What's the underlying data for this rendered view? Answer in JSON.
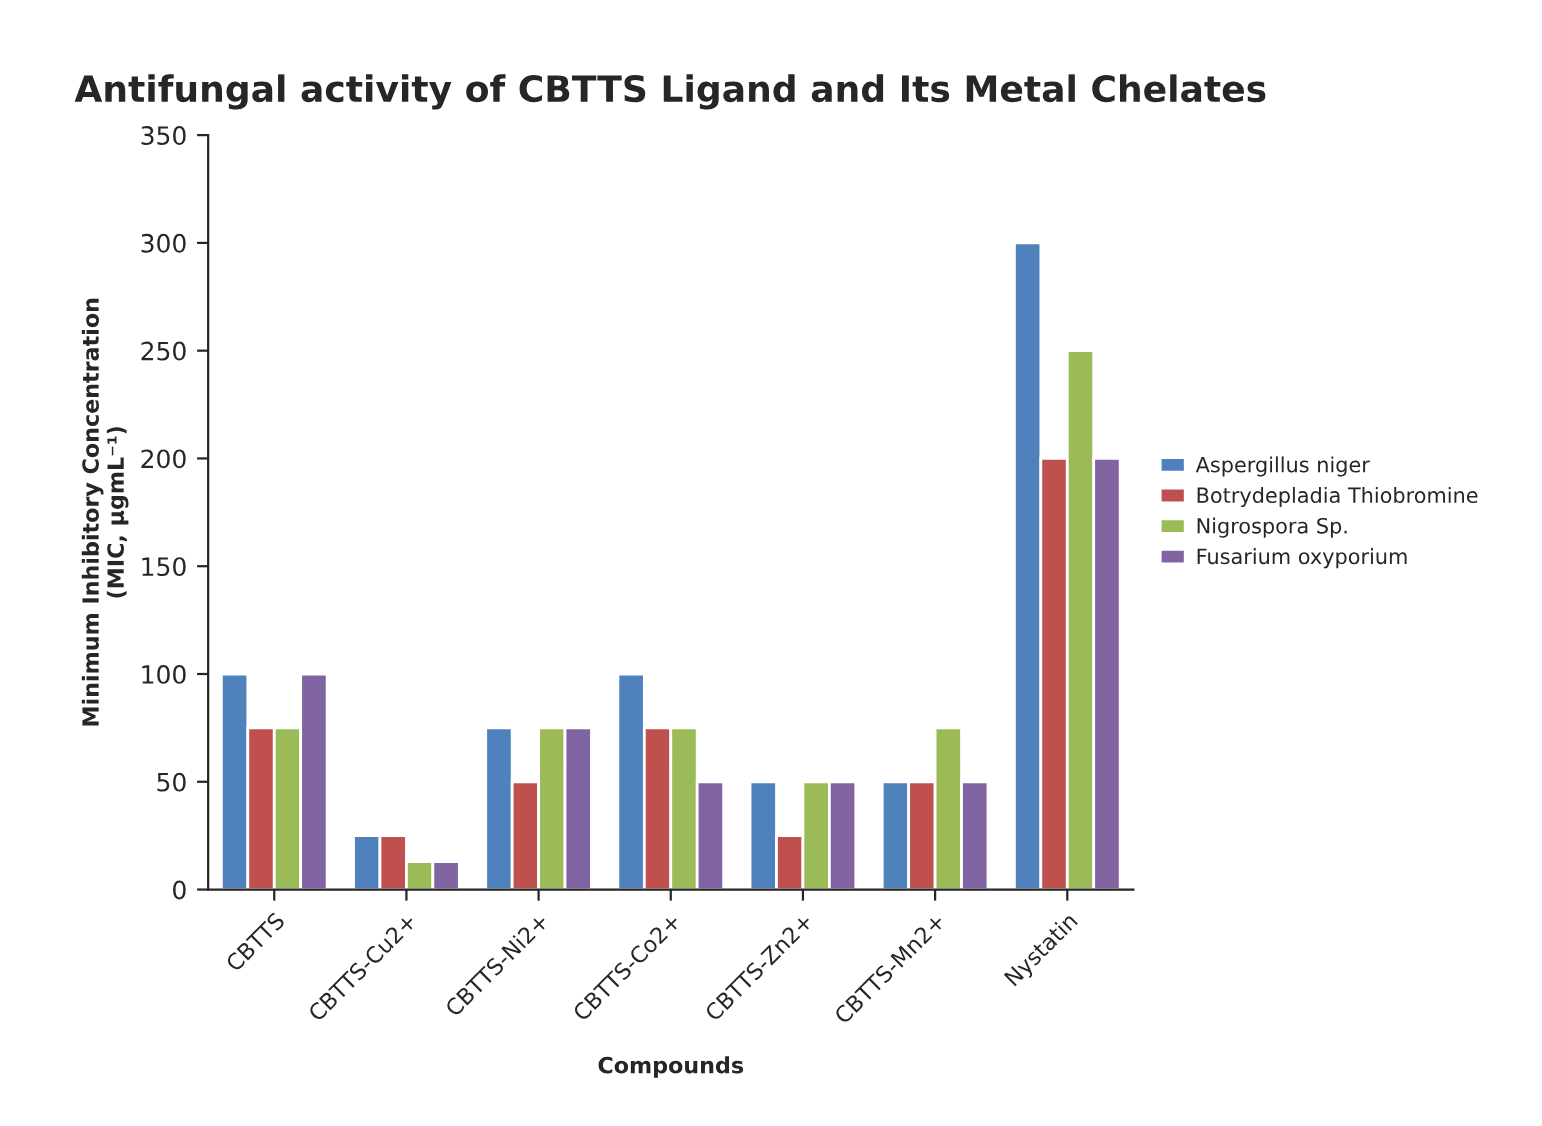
{
  "chart_data": {
    "type": "bar",
    "title": "Antifungal activity of CBTTS Ligand and Its Metal Chelates",
    "xlabel": "Compounds",
    "ylabel": "Minimum Inhibitory Concentration\n(MIC, μgmL⁻¹)",
    "categories": [
      "CBTTS",
      "CBTTS-Cu2+",
      "CBTTS-Ni2+",
      "CBTTS-Co2+",
      "CBTTS-Zn2+",
      "CBTTS-Mn2+",
      "Nystatin"
    ],
    "series": [
      {
        "name": "Aspergillus niger",
        "color": "#4f81bd",
        "values": [
          100,
          25,
          75,
          100,
          50,
          50,
          300
        ]
      },
      {
        "name": "Botrydepladia Thiobromine",
        "color": "#c0504d",
        "values": [
          75,
          25,
          50,
          75,
          25,
          50,
          200
        ]
      },
      {
        "name": "Nigrospora Sp.",
        "color": "#9bbb59",
        "values": [
          75,
          13,
          75,
          75,
          50,
          75,
          250
        ]
      },
      {
        "name": "Fusarium oxyporium",
        "color": "#8064a2",
        "values": [
          100,
          13,
          75,
          50,
          50,
          50,
          200
        ]
      }
    ],
    "ylim": [
      0,
      350
    ],
    "yticks": [
      0,
      50,
      100,
      150,
      200,
      250,
      300,
      350
    ],
    "grid": false,
    "legend": "right"
  }
}
